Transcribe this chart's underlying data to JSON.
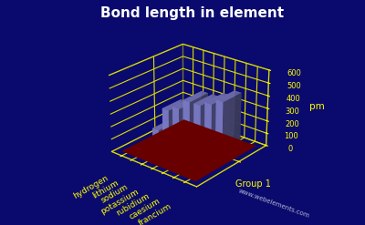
{
  "title": "Bond length in element",
  "elements": [
    "hydrogen",
    "lithium",
    "sodium",
    "potassium",
    "rubidium",
    "caesium",
    "francium"
  ],
  "values": [
    74,
    267,
    308,
    392,
    394,
    432,
    480
  ],
  "ylabel": "pm",
  "xlabel": "Group 1",
  "ylim": [
    0,
    600
  ],
  "yticks": [
    0,
    100,
    200,
    300,
    400,
    500,
    600
  ],
  "background_color": "#0a0a6e",
  "bar_color_top": "#8888dd",
  "bar_color_side": "#6666bb",
  "floor_color": "#880000",
  "grid_color": "#dddd00",
  "title_color": "#ffffff",
  "label_color": "#ffff00",
  "axis_color": "#ffff00",
  "watermark": "www.webelements.com",
  "title_fontsize": 11,
  "label_fontsize": 7.5
}
